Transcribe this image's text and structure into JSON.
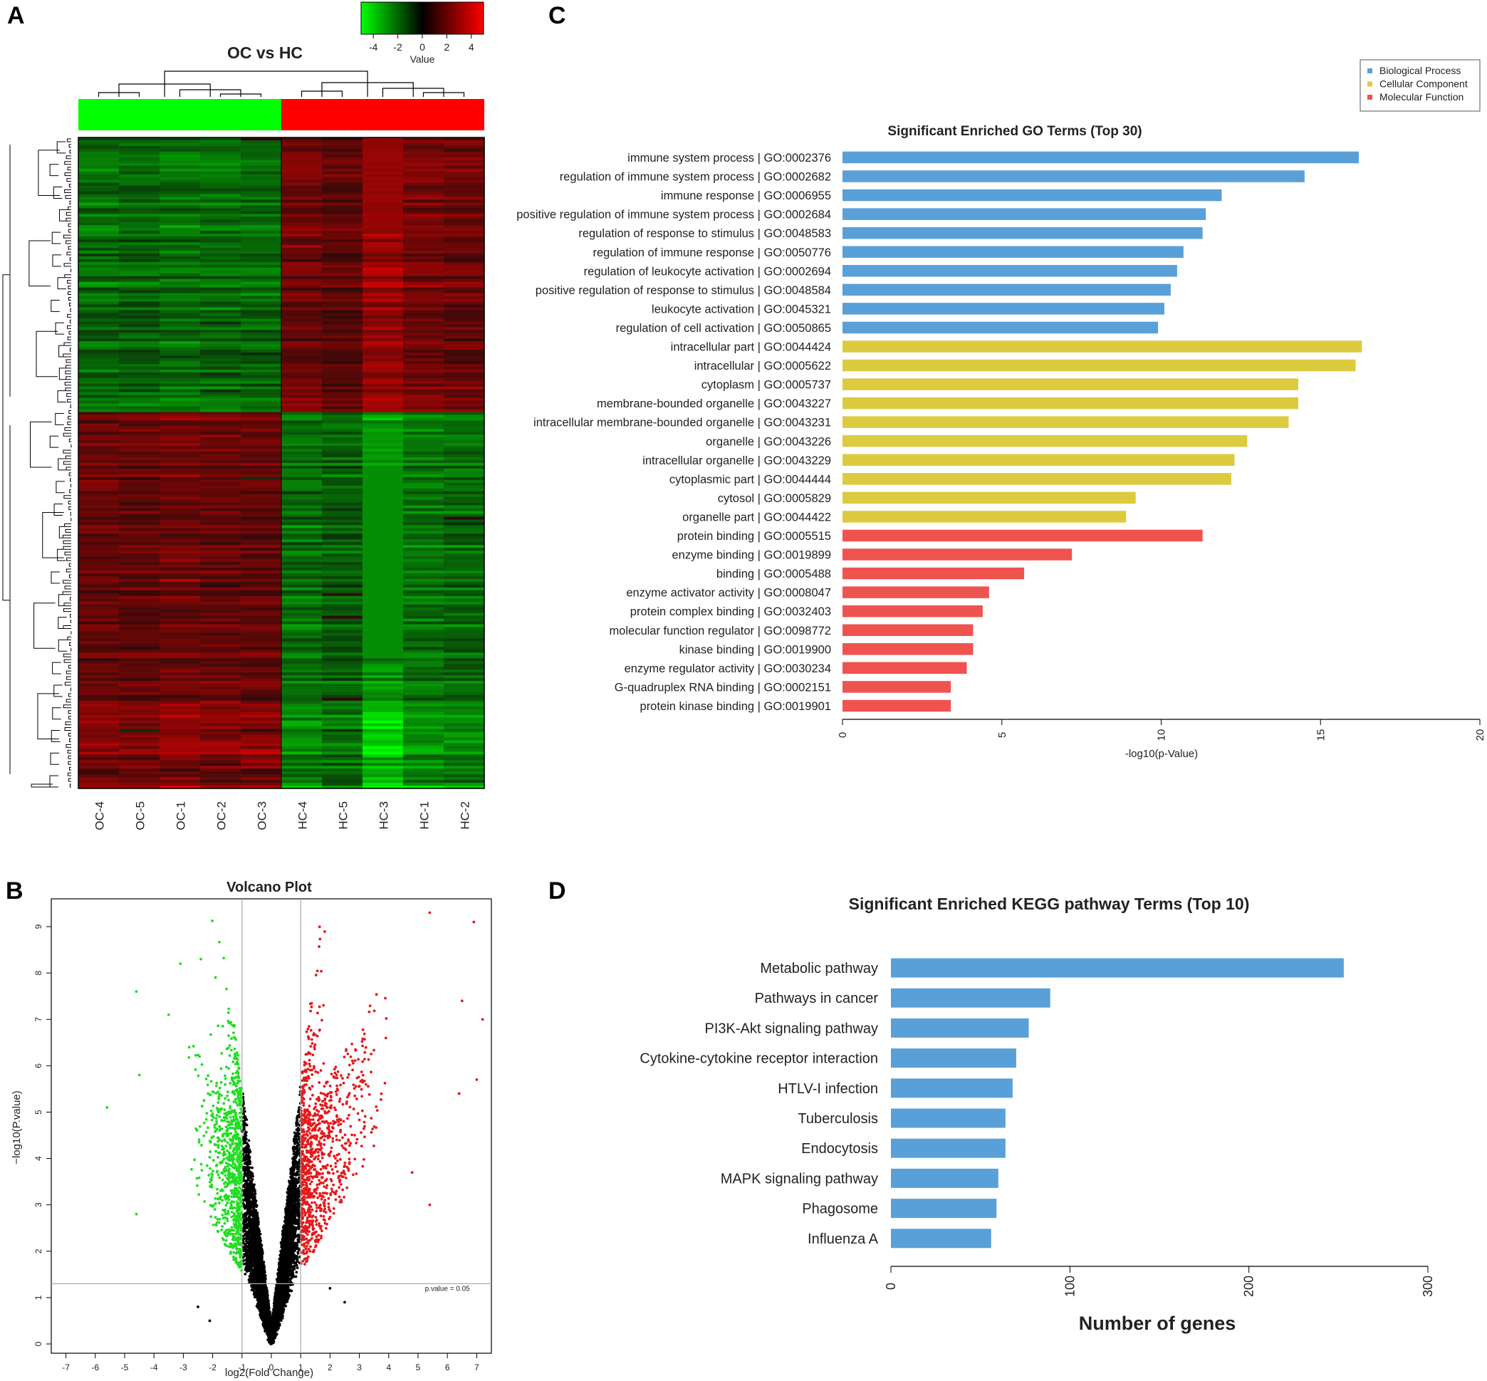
{
  "panel_labels": {
    "a": "A",
    "b": "B",
    "c": "C",
    "d": "D"
  },
  "chart_data": [
    {
      "id": "heatmap",
      "type": "heatmap",
      "title": "OC vs HC",
      "columns": [
        "OC-4",
        "OC-5",
        "OC-1",
        "OC-2",
        "OC-3",
        "HC-4",
        "HC-5",
        "HC-3",
        "HC-1",
        "HC-2"
      ],
      "groups": [
        {
          "name": "OC",
          "color": "#00ff00",
          "count": 5
        },
        {
          "name": "HC",
          "color": "#ff0000",
          "count": 5
        }
      ],
      "color_key": {
        "label": "Value",
        "ticks": [
          -4,
          -2,
          0,
          2,
          4
        ],
        "range": [
          -5,
          5
        ],
        "low_color": "#00ff00",
        "mid_color": "#000000",
        "high_color": "#ff0000"
      }
    },
    {
      "id": "volcano",
      "type": "scatter",
      "title": "Volcano Plot",
      "xlabel": "log2(Fold Change)",
      "ylabel": "−log10(P.value)",
      "xlim": [
        -7.5,
        7.5
      ],
      "ylim": [
        -0.2,
        9.6
      ],
      "xticks": [
        -7,
        -6,
        -5,
        -4,
        -3,
        -2,
        -1,
        0,
        1,
        2,
        3,
        4,
        5,
        6,
        7
      ],
      "yticks": [
        0,
        1,
        2,
        3,
        4,
        5,
        6,
        7,
        8,
        9
      ],
      "fc_thresholds": [
        -1,
        1
      ],
      "p_threshold_y": 1.3,
      "threshold_label": "p.value = 0.05",
      "colors": {
        "down": "#22dd22",
        "up": "#e41a1c",
        "ns": "#000000"
      },
      "sample_points": {
        "down": [
          [
            -5.6,
            5.1
          ],
          [
            -4.6,
            7.6
          ],
          [
            -4.5,
            5.8
          ],
          [
            -4.6,
            2.8
          ],
          [
            -3.1,
            8.2
          ],
          [
            -2.4,
            8.3
          ],
          [
            -3.5,
            7.1
          ],
          [
            -2.8,
            6.4
          ]
        ],
        "up": [
          [
            5.4,
            9.3
          ],
          [
            6.9,
            9.1
          ],
          [
            7.2,
            7.0
          ],
          [
            5.4,
            3.0
          ],
          [
            6.4,
            5.4
          ],
          [
            4.8,
            3.7
          ],
          [
            6.5,
            7.4
          ],
          [
            7.0,
            5.7
          ]
        ],
        "ns": [
          [
            -2.5,
            0.8
          ],
          [
            -2.1,
            0.5
          ],
          [
            2.0,
            1.2
          ],
          [
            2.5,
            0.9
          ]
        ]
      }
    },
    {
      "id": "go",
      "type": "bar",
      "orientation": "horizontal",
      "title": "Significant Enriched GO Terms (Top 30)",
      "xlabel": "-log10(p-Value)",
      "xlim": [
        0,
        20
      ],
      "xticks": [
        0,
        5,
        10,
        15,
        20
      ],
      "legend": [
        {
          "name": "Biological Process",
          "color": "#5aa0d8"
        },
        {
          "name": "Cellular Component",
          "color": "#dccb3f"
        },
        {
          "name": "Molecular Function",
          "color": "#ef5350"
        }
      ],
      "legend_position": "top-right",
      "categories": [
        "immune system process | GO:0002376",
        "regulation of immune system process | GO:0002682",
        "immune response | GO:0006955",
        "positive regulation of immune system process | GO:0002684",
        "regulation of response to stimulus | GO:0048583",
        "regulation of immune response | GO:0050776",
        "regulation of leukocyte activation | GO:0002694",
        "positive regulation of response to stimulus | GO:0048584",
        "leukocyte activation | GO:0045321",
        "regulation of cell activation | GO:0050865",
        "intracellular part | GO:0044424",
        "intracellular | GO:0005622",
        "cytoplasm | GO:0005737",
        "membrane-bounded organelle | GO:0043227",
        "intracellular membrane-bounded organelle | GO:0043231",
        "organelle | GO:0043226",
        "intracellular organelle | GO:0043229",
        "cytoplasmic part | GO:0044444",
        "cytosol | GO:0005829",
        "organelle part | GO:0044422",
        "protein binding | GO:0005515",
        "enzyme binding | GO:0019899",
        "binding | GO:0005488",
        "enzyme activator activity | GO:0008047",
        "protein complex binding | GO:0032403",
        "molecular function regulator | GO:0098772",
        "kinase binding | GO:0019900",
        "enzyme regulator activity | GO:0030234",
        "G-quadruplex RNA binding | GO:0002151",
        "protein kinase binding | GO:0019901"
      ],
      "values": [
        16.2,
        14.5,
        11.9,
        11.4,
        11.3,
        10.7,
        10.5,
        10.3,
        10.1,
        9.9,
        16.3,
        16.1,
        14.3,
        14.3,
        14.0,
        12.7,
        12.3,
        12.2,
        9.2,
        8.9,
        11.3,
        7.2,
        5.7,
        4.6,
        4.4,
        4.1,
        4.1,
        3.9,
        3.4,
        3.4
      ],
      "groups": [
        0,
        0,
        0,
        0,
        0,
        0,
        0,
        0,
        0,
        0,
        1,
        1,
        1,
        1,
        1,
        1,
        1,
        1,
        1,
        1,
        2,
        2,
        2,
        2,
        2,
        2,
        2,
        2,
        2,
        2
      ]
    },
    {
      "id": "kegg",
      "type": "bar",
      "orientation": "horizontal",
      "title": "Significant Enriched KEGG pathway Terms (Top 10)",
      "xlabel": "Number of genes",
      "xlim": [
        0,
        300
      ],
      "xticks": [
        0,
        100,
        200,
        300
      ],
      "color": "#5aa0d8",
      "categories": [
        "Metabolic pathway",
        "Pathways in cancer",
        "PI3K-Akt signaling pathway",
        "Cytokine-cytokine receptor interaction",
        "HTLV-I infection",
        "Tuberculosis",
        "Endocytosis",
        "MAPK signaling pathway",
        "Phagosome",
        "Influenza A"
      ],
      "values": [
        253,
        89,
        77,
        70,
        68,
        64,
        64,
        60,
        59,
        56
      ]
    }
  ]
}
